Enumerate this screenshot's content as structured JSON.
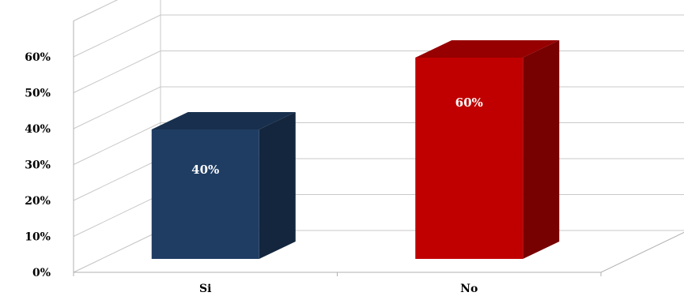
{
  "chart_data": {
    "type": "bar",
    "categories": [
      "Si",
      "No"
    ],
    "values": [
      40,
      60
    ],
    "value_labels": [
      "40%",
      "60%"
    ],
    "series_colors": [
      "#1f3d63",
      "#c00000"
    ],
    "ylim": [
      0,
      70
    ],
    "yticks": [
      0,
      10,
      20,
      30,
      40,
      50,
      60
    ],
    "ytick_labels": [
      "0%",
      "10%",
      "20%",
      "30%",
      "40%",
      "50%",
      "60%"
    ],
    "grid": true,
    "legend": "none",
    "style": "3d"
  }
}
